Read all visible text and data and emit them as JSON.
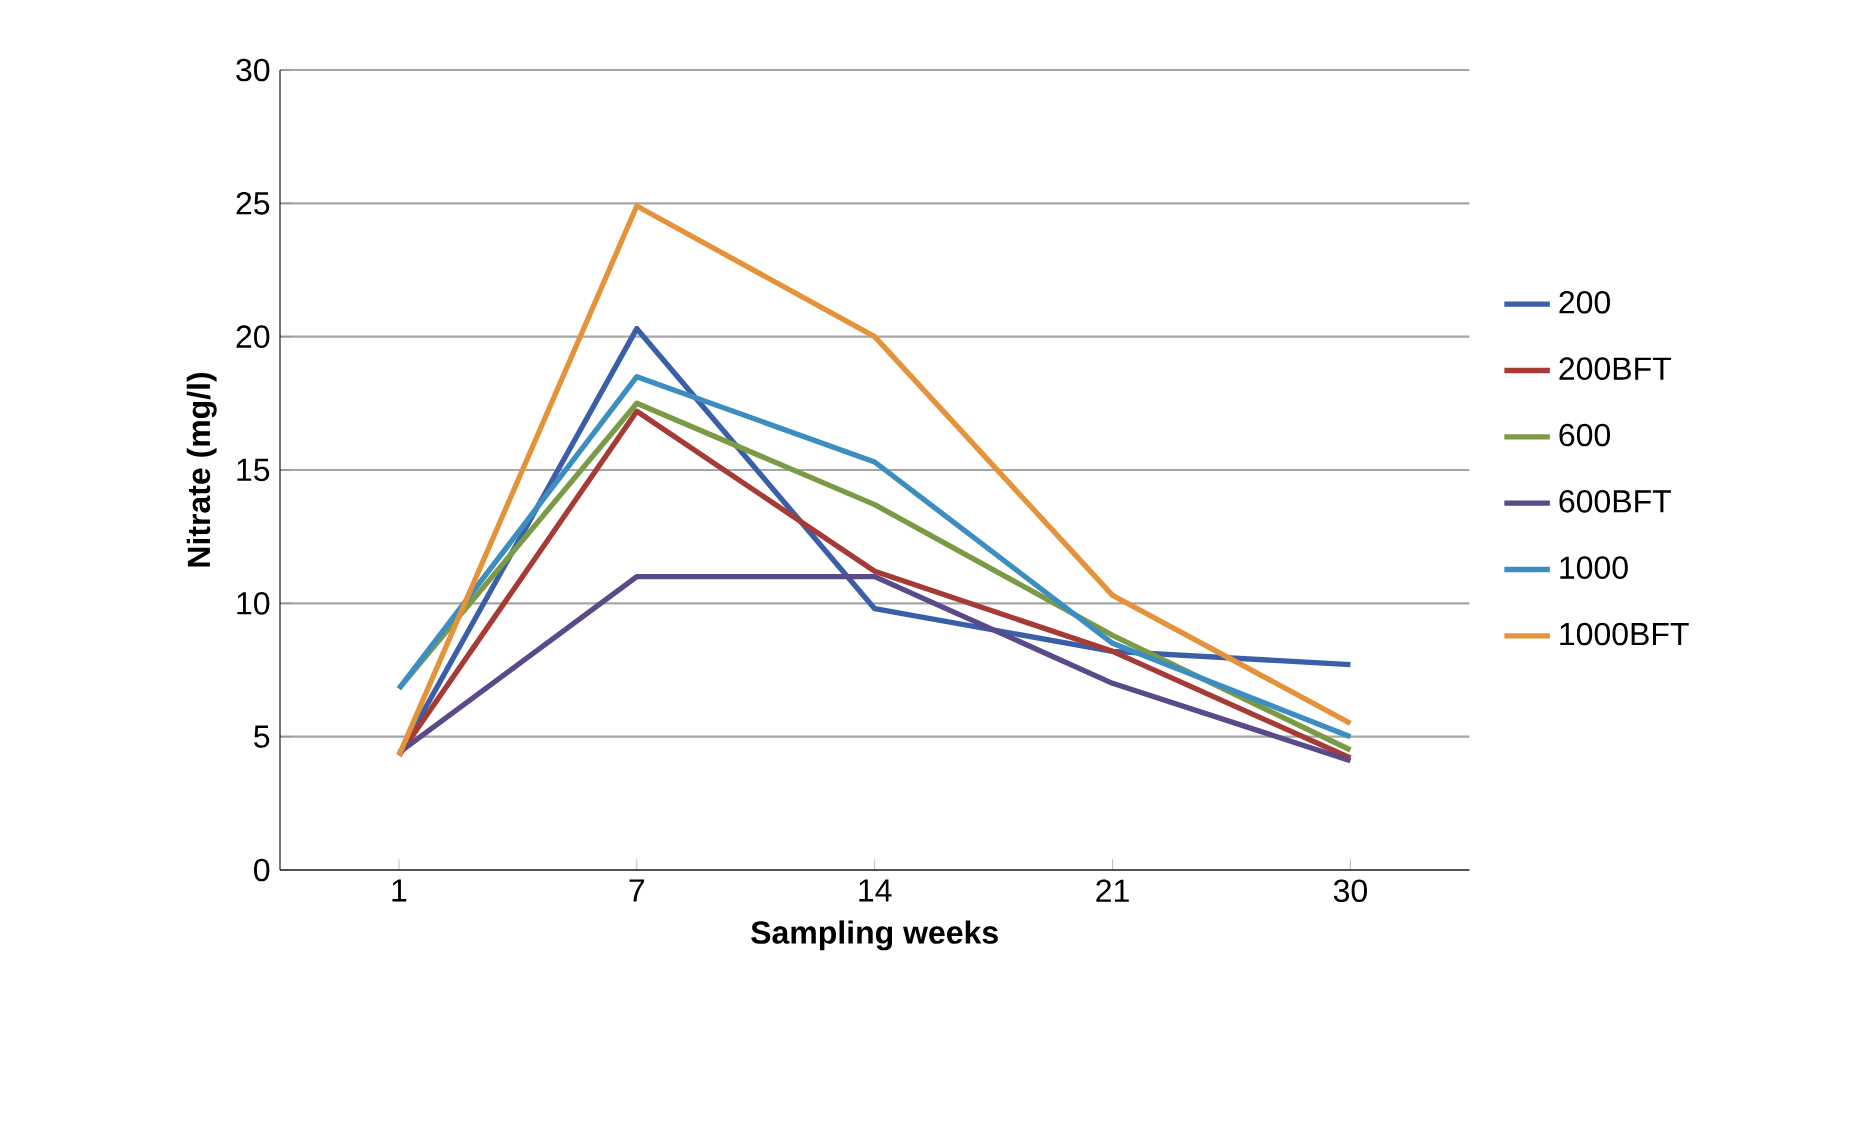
{
  "chart_data": {
    "type": "line",
    "xlabel": "Sampling weeks",
    "ylabel": "Nitrate (mg/l)",
    "categories": [
      "1",
      "7",
      "14",
      "21",
      "30"
    ],
    "ylim": [
      0,
      30
    ],
    "yticks": [
      0,
      5,
      10,
      15,
      20,
      25,
      30
    ],
    "grid": "y",
    "legend": "right",
    "marker": "none",
    "series": [
      {
        "name": "200",
        "color": "#3a5fa8",
        "values": [
          4.3,
          20.3,
          9.8,
          8.2,
          7.7
        ]
      },
      {
        "name": "200BFT",
        "color": "#a63a35",
        "values": [
          4.3,
          17.2,
          11.2,
          8.2,
          4.2
        ]
      },
      {
        "name": "600",
        "color": "#7a9a45",
        "values": [
          6.8,
          17.5,
          13.7,
          8.8,
          4.5
        ]
      },
      {
        "name": "600BFT",
        "color": "#5a4a8a",
        "values": [
          4.4,
          11.0,
          11.0,
          7.0,
          4.1
        ]
      },
      {
        "name": "1000",
        "color": "#3d8ec0",
        "values": [
          6.8,
          18.5,
          15.3,
          8.5,
          5.0
        ]
      },
      {
        "name": "1000BFT",
        "color": "#e5933a",
        "values": [
          4.3,
          24.9,
          20.0,
          10.3,
          5.5
        ]
      }
    ]
  }
}
